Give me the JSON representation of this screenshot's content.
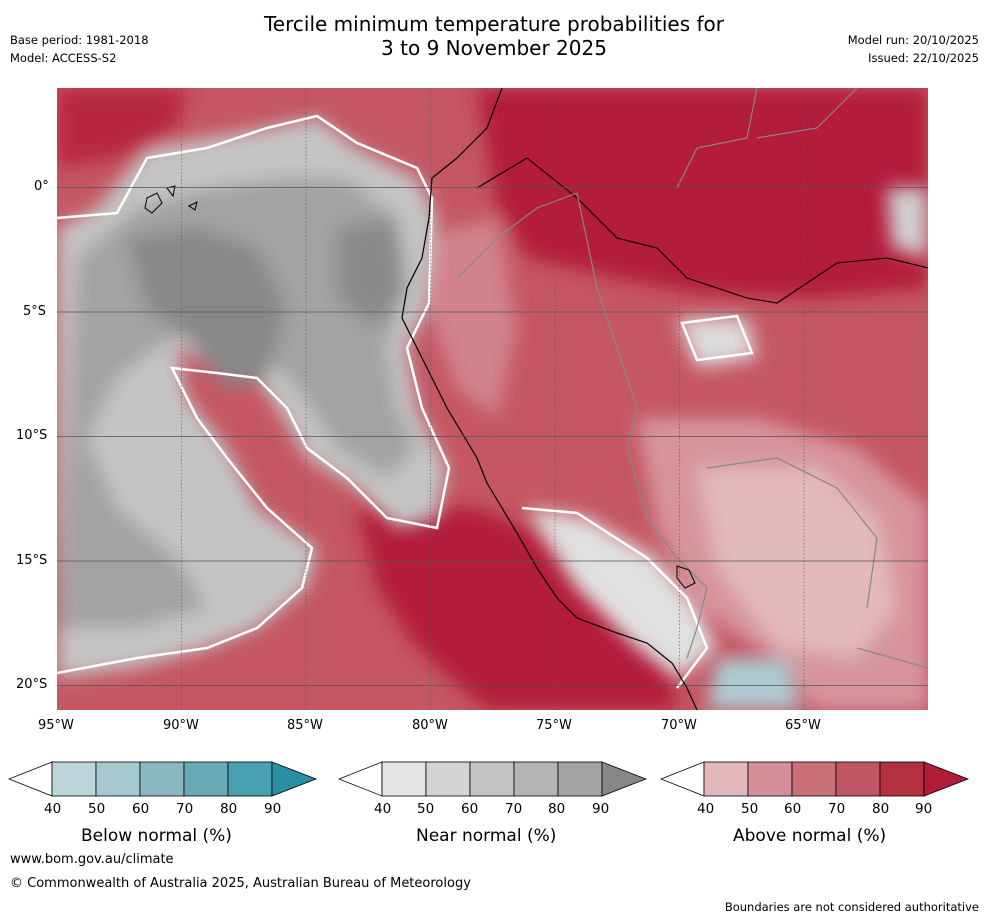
{
  "header": {
    "title_line1": "Tercile minimum temperature probabilities for",
    "title_line2": "3 to 9 November 2025",
    "base_period": "Base period: 1981-2018",
    "model": "Model: ACCESS-S2",
    "model_run": "Model run: 20/10/2025",
    "issued": "Issued: 22/10/2025"
  },
  "map": {
    "lat_labels": [
      "0°",
      "5°S",
      "10°S",
      "15°S",
      "20°S"
    ],
    "lon_labels": [
      "95°W",
      "90°W",
      "85°W",
      "80°W",
      "75°W",
      "70°W",
      "65°W"
    ],
    "lon_range_deg": [
      -95,
      -60
    ],
    "lat_range_deg": [
      4,
      -21
    ]
  },
  "legends": [
    {
      "title": "Below normal (%)",
      "ticks": [
        "40",
        "50",
        "60",
        "70",
        "80",
        "90"
      ],
      "colors": [
        "#ffffff",
        "#bdd5da",
        "#a6c8cf",
        "#8bb7c3",
        "#6aaab6",
        "#48a0b0",
        "#2a8fa2"
      ]
    },
    {
      "title": "Near normal (%)",
      "ticks": [
        "40",
        "50",
        "60",
        "70",
        "80",
        "90"
      ],
      "colors": [
        "#ffffff",
        "#e4e4e4",
        "#d4d4d4",
        "#c4c4c4",
        "#b4b4b4",
        "#a3a3a3",
        "#878787"
      ]
    },
    {
      "title": "Above normal (%)",
      "ticks": [
        "40",
        "50",
        "60",
        "70",
        "80",
        "90"
      ],
      "colors": [
        "#ffffff",
        "#e2b8bd",
        "#d48f98",
        "#c97078",
        "#c05663",
        "#b3303f",
        "#b11c39"
      ]
    }
  ],
  "footer": {
    "website": "www.bom.gov.au/climate",
    "copyright": "© Commonwealth of Australia 2025, Australian Bureau of Meteorology",
    "disclaimer": "Boundaries are not considered authoritative"
  }
}
